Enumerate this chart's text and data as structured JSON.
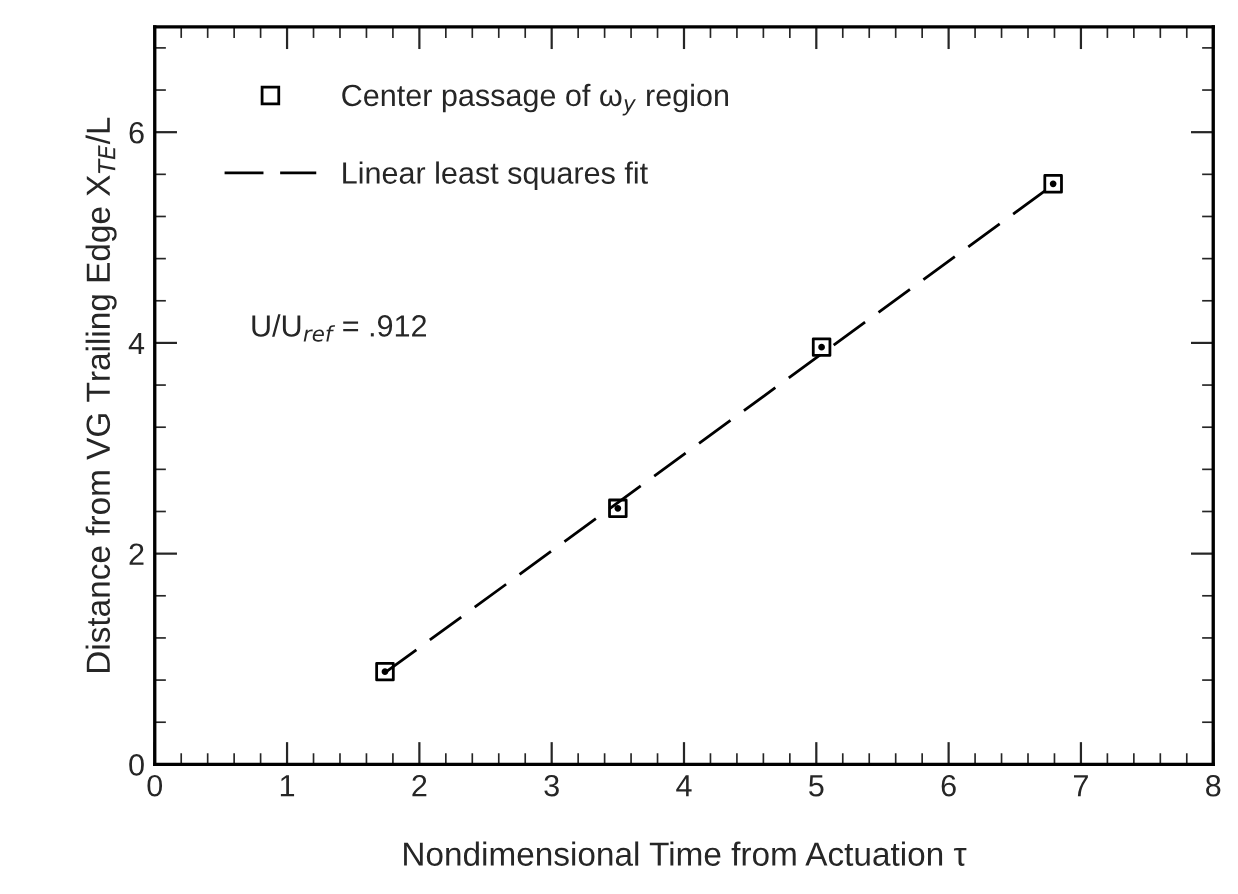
{
  "chart_data": {
    "type": "scatter",
    "xlabel": "Nondimensional Time from Actuation τ",
    "ylabel": "Distance from VG Trailing Edge X$_{TE}$/L",
    "annotations": [
      "U/U$_{ref}$ = .912"
    ],
    "series": [
      {
        "name": "Center passage of ω$_{y}$ region",
        "marker": "square",
        "color": "#000000",
        "x": [
          1.74,
          3.5,
          5.04,
          6.79
        ],
        "values": [
          0.88,
          2.43,
          3.96,
          5.51
        ]
      },
      {
        "name": "Linear least squares fit",
        "type": "line",
        "marker": "none",
        "line_style": "dashed",
        "color": "#000000",
        "x": [
          1.74,
          6.79
        ],
        "values": [
          0.87,
          5.5
        ]
      }
    ],
    "xlim": [
      0,
      8
    ],
    "ylim": [
      0,
      7
    ],
    "xticks": [
      0,
      {
        "value": 0.2,
        "label": null
      },
      {
        "value": 0.4,
        "label": null
      },
      {
        "value": 0.6,
        "label": null
      },
      {
        "value": 0.8,
        "label": null
      },
      1,
      {
        "value": 1.2,
        "label": null
      },
      {
        "value": 1.4,
        "label": null
      },
      {
        "value": 1.6,
        "label": null
      },
      {
        "value": 1.8,
        "label": null
      },
      2,
      {
        "value": 2.2,
        "label": null
      },
      {
        "value": 2.4,
        "label": null
      },
      {
        "value": 2.6,
        "label": null
      },
      {
        "value": 2.8,
        "label": null
      },
      3,
      {
        "value": 3.2,
        "label": null
      },
      {
        "value": 3.4,
        "label": null
      },
      {
        "value": 3.6,
        "label": null
      },
      {
        "value": 3.8,
        "label": null
      },
      4,
      {
        "value": 4.2,
        "label": null
      },
      {
        "value": 4.4,
        "label": null
      },
      {
        "value": 4.6,
        "label": null
      },
      {
        "value": 4.8,
        "label": null
      },
      5,
      {
        "value": 5.2,
        "label": null
      },
      {
        "value": 5.4,
        "label": null
      },
      {
        "value": 5.6,
        "label": null
      },
      {
        "value": 5.8,
        "label": null
      },
      6,
      {
        "value": 6.2,
        "label": null
      },
      {
        "value": 6.4,
        "label": null
      },
      {
        "value": 6.6,
        "label": null
      },
      {
        "value": 6.8,
        "label": null
      },
      7,
      {
        "value": 7.2,
        "label": null
      },
      {
        "value": 7.4,
        "label": null
      },
      {
        "value": 7.6,
        "label": null
      },
      {
        "value": 7.8,
        "label": null
      },
      8
    ],
    "yticks": [
      0,
      {
        "value": 0.4,
        "label": null
      },
      {
        "value": 0.8,
        "label": null
      },
      {
        "value": 1.2,
        "label": null
      },
      {
        "value": 1.6,
        "label": null
      },
      2,
      {
        "value": 2.4,
        "label": null
      },
      {
        "value": 2.8,
        "label": null
      },
      {
        "value": 3.2,
        "label": null
      },
      {
        "value": 3.6,
        "label": null
      },
      4,
      {
        "value": 4.4,
        "label": null
      },
      {
        "value": 4.8,
        "label": null
      },
      {
        "value": 5.2,
        "label": null
      },
      {
        "value": 5.6,
        "label": null
      },
      6,
      {
        "value": 6.4,
        "label": null
      },
      {
        "value": 6.8,
        "label": null
      }
    ],
    "grid": false,
    "legend": "top left"
  }
}
